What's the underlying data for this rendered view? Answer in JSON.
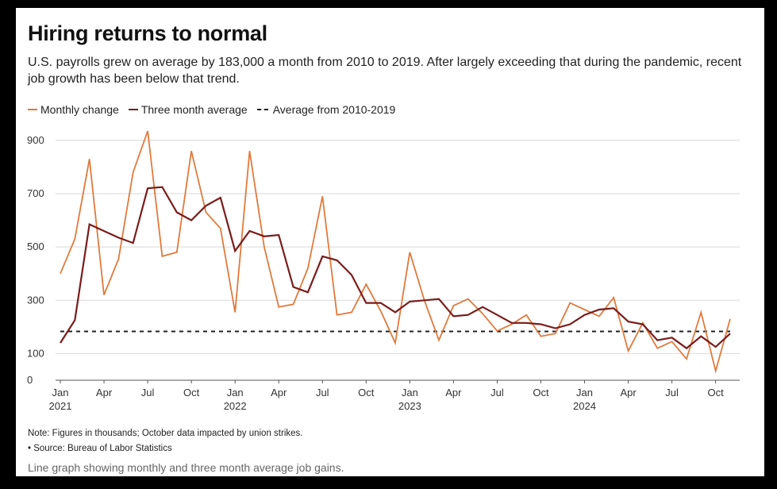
{
  "title": "Hiring returns to normal",
  "subtitle": "U.S. payrolls grew on average by 183,000 a month from 2010 to 2019. After largely exceeding that during the pandemic, recent job growth has been below that trend.",
  "legend": {
    "monthly": "Monthly change",
    "avg": "Three month average",
    "baseline": "Average from 2010-2019"
  },
  "note": "Note: Figures in thousands; October data impacted by union strikes.",
  "source": "• Source: Bureau of Labor Statistics",
  "caption": "Line graph showing monthly and three month average job gains.",
  "colors": {
    "monthly": "#e07a3c",
    "avg": "#7a1c1c",
    "baseline": "#222222",
    "grid": "#d9d9d9"
  },
  "chart_data": {
    "type": "line",
    "x": [
      "2021-01",
      "2021-02",
      "2021-03",
      "2021-04",
      "2021-05",
      "2021-06",
      "2021-07",
      "2021-08",
      "2021-09",
      "2021-10",
      "2021-11",
      "2021-12",
      "2022-01",
      "2022-02",
      "2022-03",
      "2022-04",
      "2022-05",
      "2022-06",
      "2022-07",
      "2022-08",
      "2022-09",
      "2022-10",
      "2022-11",
      "2022-12",
      "2023-01",
      "2023-02",
      "2023-03",
      "2023-04",
      "2023-05",
      "2023-06",
      "2023-07",
      "2023-08",
      "2023-09",
      "2023-10",
      "2023-11",
      "2023-12",
      "2024-01",
      "2024-02",
      "2024-03",
      "2024-04",
      "2024-05",
      "2024-06",
      "2024-07",
      "2024-08",
      "2024-09",
      "2024-10",
      "2024-11"
    ],
    "series": [
      {
        "name": "Monthly change",
        "values": [
          400,
          530,
          830,
          320,
          455,
          780,
          935,
          465,
          480,
          860,
          630,
          570,
          255,
          860,
          500,
          275,
          285,
          420,
          690,
          245,
          255,
          360,
          260,
          140,
          480,
          300,
          150,
          280,
          305,
          250,
          185,
          210,
          245,
          165,
          175,
          290,
          265,
          240,
          310,
          110,
          215,
          120,
          145,
          80,
          255,
          35,
          230
        ]
      },
      {
        "name": "Three month average",
        "values": [
          140,
          225,
          585,
          560,
          535,
          515,
          720,
          725,
          630,
          600,
          655,
          685,
          485,
          560,
          540,
          545,
          350,
          330,
          465,
          450,
          395,
          290,
          290,
          255,
          295,
          300,
          305,
          240,
          245,
          275,
          245,
          215,
          215,
          210,
          195,
          210,
          245,
          265,
          270,
          220,
          210,
          150,
          160,
          120,
          165,
          125,
          175
        ]
      }
    ],
    "baseline": {
      "name": "Average from 2010-2019",
      "value": 183
    },
    "ylim": [
      0,
      950
    ],
    "yticks": [
      0,
      100,
      300,
      500,
      700,
      900
    ],
    "xticks": [
      {
        "i": 0,
        "label": "Jan",
        "year": "2021"
      },
      {
        "i": 3,
        "label": "Apr"
      },
      {
        "i": 6,
        "label": "Jul"
      },
      {
        "i": 9,
        "label": "Oct"
      },
      {
        "i": 12,
        "label": "Jan",
        "year": "2022"
      },
      {
        "i": 15,
        "label": "Apr"
      },
      {
        "i": 18,
        "label": "Jul"
      },
      {
        "i": 21,
        "label": "Oct"
      },
      {
        "i": 24,
        "label": "Jan",
        "year": "2023"
      },
      {
        "i": 27,
        "label": "Apr"
      },
      {
        "i": 30,
        "label": "Jul"
      },
      {
        "i": 33,
        "label": "Oct"
      },
      {
        "i": 36,
        "label": "Jan",
        "year": "2024"
      },
      {
        "i": 39,
        "label": "Apr"
      },
      {
        "i": 42,
        "label": "Jul"
      },
      {
        "i": 45,
        "label": "Oct"
      }
    ],
    "grid": true,
    "legend_position": "top-left"
  }
}
